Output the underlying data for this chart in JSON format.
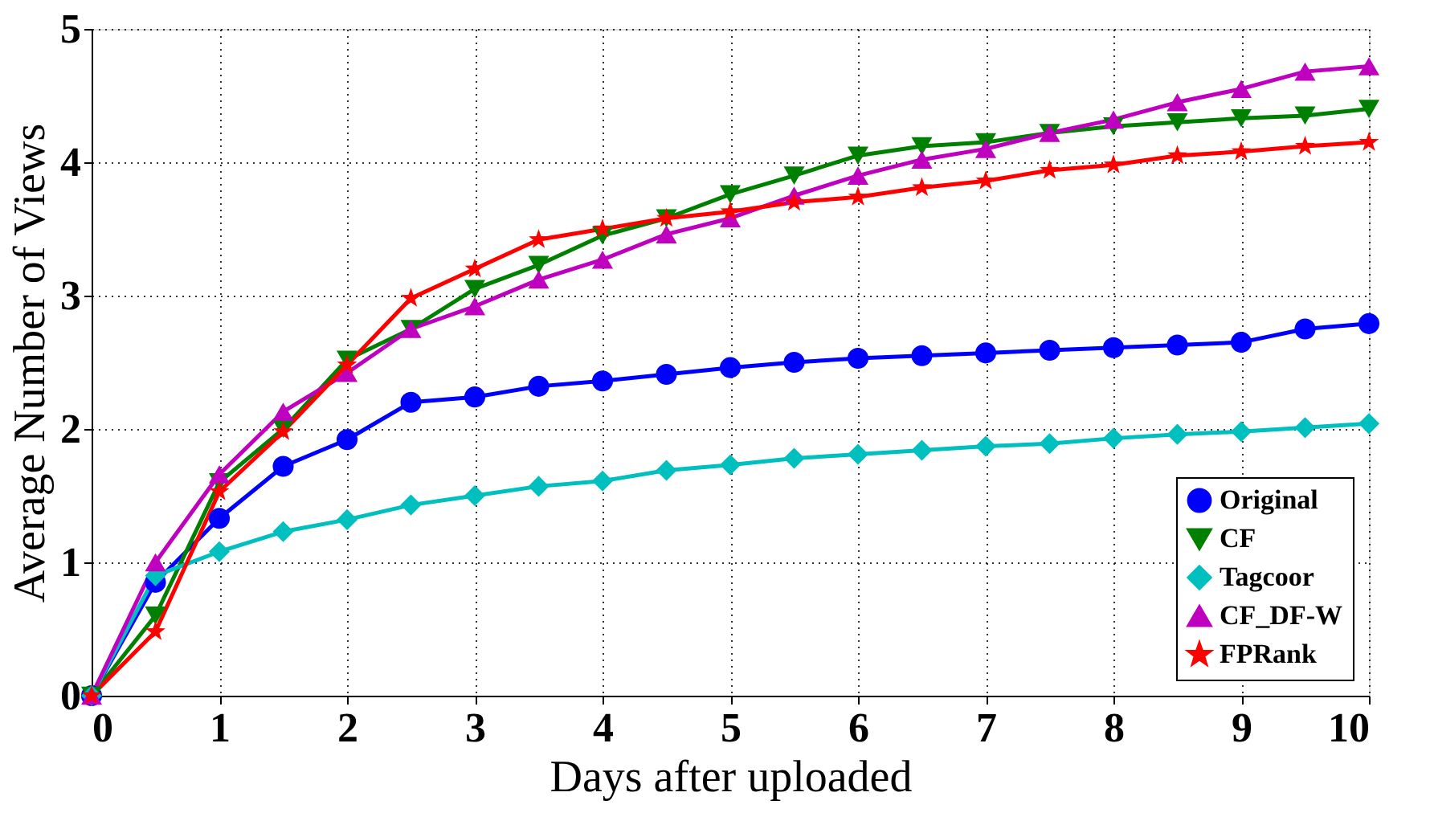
{
  "chart_data": {
    "type": "line",
    "xlabel": "Days after uploaded",
    "ylabel": "Average Number of Views",
    "x": [
      0,
      0.5,
      1,
      1.5,
      2,
      2.5,
      3,
      3.5,
      4,
      4.5,
      5,
      5.5,
      6,
      6.5,
      7,
      7.5,
      8,
      8.5,
      9,
      9.5,
      10
    ],
    "series": [
      {
        "name": "Original",
        "color": "#0000ff",
        "marker": "circle",
        "values": [
          0,
          0.85,
          1.33,
          1.72,
          1.92,
          2.2,
          2.24,
          2.32,
          2.36,
          2.41,
          2.46,
          2.5,
          2.53,
          2.55,
          2.57,
          2.59,
          2.61,
          2.63,
          2.65,
          2.75,
          2.79
        ]
      },
      {
        "name": "CF",
        "color": "#008000",
        "marker": "triangle-down",
        "values": [
          0,
          0.6,
          1.6,
          2.0,
          2.52,
          2.75,
          3.05,
          3.23,
          3.45,
          3.58,
          3.76,
          3.9,
          4.05,
          4.12,
          4.15,
          4.22,
          4.27,
          4.3,
          4.33,
          4.35,
          4.4
        ]
      },
      {
        "name": "Tagcoor",
        "color": "#00bfbf",
        "marker": "diamond",
        "values": [
          0,
          0.9,
          1.08,
          1.23,
          1.32,
          1.43,
          1.5,
          1.57,
          1.61,
          1.69,
          1.73,
          1.78,
          1.81,
          1.84,
          1.87,
          1.89,
          1.93,
          1.96,
          1.98,
          2.01,
          2.04
        ]
      },
      {
        "name": "CF_DF-W",
        "color": "#bf00bf",
        "marker": "triangle",
        "values": [
          0,
          1.0,
          1.66,
          2.13,
          2.42,
          2.75,
          2.92,
          3.12,
          3.27,
          3.46,
          3.58,
          3.75,
          3.9,
          4.02,
          4.1,
          4.22,
          4.32,
          4.45,
          4.55,
          4.68,
          4.72
        ]
      },
      {
        "name": "FPRank",
        "color": "#ff0000",
        "marker": "star",
        "values": [
          0,
          0.48,
          1.53,
          1.98,
          2.48,
          2.98,
          3.2,
          3.42,
          3.5,
          3.58,
          3.63,
          3.7,
          3.74,
          3.81,
          3.86,
          3.94,
          3.98,
          4.05,
          4.08,
          4.12,
          4.15
        ]
      }
    ],
    "xlim": [
      0,
      10
    ],
    "xticks": [
      0,
      1,
      2,
      3,
      4,
      5,
      6,
      7,
      8,
      9,
      10
    ],
    "ylim": [
      0,
      5
    ],
    "yticks": [
      0,
      1,
      2,
      3,
      4,
      5
    ],
    "grid": true,
    "legend": "bottom right",
    "line_style": "solid"
  }
}
